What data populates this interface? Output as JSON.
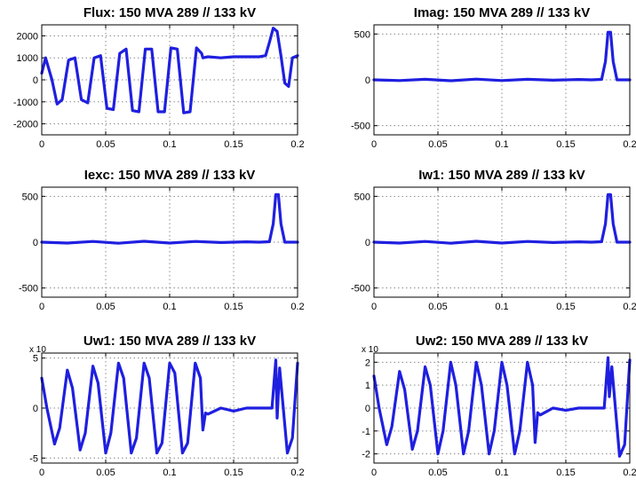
{
  "chart_data": [
    {
      "type": "line",
      "title": "Flux: 150 MVA 289 // 133 kV",
      "x_ticks": [
        "0",
        "0.05",
        "0.1",
        "0.15",
        "0.2"
      ],
      "y_ticks": [
        "-2000",
        "-1000",
        "0",
        "1000",
        "2000"
      ],
      "xlim": [
        0,
        0.2
      ],
      "ylim": [
        -2500,
        2500
      ],
      "grid": true,
      "color": "#1f1fe0",
      "series": [
        {
          "x": [
            0,
            0.003,
            0.008,
            0.012,
            0.016,
            0.021,
            0.026,
            0.031,
            0.036,
            0.041,
            0.046,
            0.051,
            0.056,
            0.061,
            0.066,
            0.071,
            0.076,
            0.081,
            0.086,
            0.091,
            0.096,
            0.101,
            0.106,
            0.111,
            0.116,
            0.121,
            0.125,
            0.126,
            0.13,
            0.14,
            0.15,
            0.16,
            0.17,
            0.175,
            0.178,
            0.181,
            0.184,
            0.187,
            0.19,
            0.193,
            0.196,
            0.2
          ],
          "y": [
            300,
            1000,
            0,
            -1100,
            -900,
            900,
            1000,
            -900,
            -1050,
            1000,
            1100,
            -1300,
            -1350,
            1200,
            1400,
            -1400,
            -1450,
            1400,
            1400,
            -1450,
            -1450,
            1450,
            1400,
            -1500,
            -1450,
            1450,
            1200,
            1000,
            1050,
            1000,
            1050,
            1050,
            1050,
            1100,
            1700,
            2350,
            2200,
            1100,
            -150,
            -300,
            1000,
            1100
          ]
        }
      ]
    },
    {
      "type": "line",
      "title": "Imag: 150 MVA 289 // 133 kV",
      "x_ticks": [
        "0",
        "0.05",
        "0.1",
        "0.15",
        "0.2"
      ],
      "y_ticks": [
        "-500",
        "0",
        "500"
      ],
      "xlim": [
        0,
        0.2
      ],
      "ylim": [
        -600,
        600
      ],
      "grid": true,
      "color": "#1f1fe0",
      "series": [
        {
          "x": [
            0,
            0.02,
            0.04,
            0.06,
            0.08,
            0.1,
            0.12,
            0.14,
            0.16,
            0.17,
            0.178,
            0.181,
            0.183,
            0.185,
            0.187,
            0.19,
            0.2
          ],
          "y": [
            0,
            -8,
            6,
            -10,
            8,
            -8,
            6,
            -4,
            4,
            0,
            5,
            200,
            520,
            520,
            200,
            0,
            0
          ]
        }
      ]
    },
    {
      "type": "line",
      "title": "Iexc: 150 MVA 289 // 133 kV",
      "x_ticks": [
        "0",
        "0.05",
        "0.1",
        "0.15",
        "0.2"
      ],
      "y_ticks": [
        "-500",
        "0",
        "500"
      ],
      "xlim": [
        0,
        0.2
      ],
      "ylim": [
        -600,
        600
      ],
      "grid": true,
      "color": "#1f1fe0",
      "series": [
        {
          "x": [
            0,
            0.02,
            0.04,
            0.06,
            0.08,
            0.1,
            0.12,
            0.14,
            0.16,
            0.17,
            0.178,
            0.181,
            0.183,
            0.185,
            0.187,
            0.19,
            0.2
          ],
          "y": [
            0,
            -10,
            8,
            -12,
            10,
            -10,
            8,
            -4,
            4,
            0,
            5,
            200,
            520,
            520,
            200,
            0,
            0
          ]
        }
      ]
    },
    {
      "type": "line",
      "title": "Iw1: 150 MVA 289 // 133 kV",
      "x_ticks": [
        "0",
        "0.05",
        "0.1",
        "0.15",
        "0.2"
      ],
      "y_ticks": [
        "-500",
        "0",
        "500"
      ],
      "xlim": [
        0,
        0.2
      ],
      "ylim": [
        -600,
        600
      ],
      "grid": true,
      "color": "#1f1fe0",
      "series": [
        {
          "x": [
            0,
            0.02,
            0.04,
            0.06,
            0.08,
            0.1,
            0.12,
            0.14,
            0.16,
            0.17,
            0.178,
            0.181,
            0.183,
            0.185,
            0.187,
            0.19,
            0.2
          ],
          "y": [
            0,
            -10,
            8,
            -12,
            10,
            -10,
            8,
            -4,
            4,
            0,
            5,
            200,
            520,
            520,
            200,
            0,
            0
          ]
        }
      ]
    },
    {
      "type": "line",
      "title": "Uw1: 150 MVA 289 // 133 kV",
      "multiplier": "x 10",
      "x_ticks": [
        "0",
        "0.05",
        "0.1",
        "0.15",
        "0.2"
      ],
      "y_ticks": [
        "-5",
        "0",
        "5"
      ],
      "xlim": [
        0,
        0.2
      ],
      "ylim": [
        -5.5,
        5.5
      ],
      "grid": true,
      "color": "#1f1fe0",
      "series": [
        {
          "x": [
            0,
            0.004,
            0.01,
            0.014,
            0.02,
            0.024,
            0.03,
            0.034,
            0.04,
            0.044,
            0.05,
            0.054,
            0.06,
            0.064,
            0.07,
            0.074,
            0.08,
            0.084,
            0.09,
            0.094,
            0.1,
            0.104,
            0.11,
            0.114,
            0.12,
            0.124,
            0.126,
            0.128,
            0.13,
            0.14,
            0.15,
            0.16,
            0.17,
            0.18,
            0.183,
            0.184,
            0.186,
            0.192,
            0.196,
            0.2
          ],
          "y": [
            3,
            0,
            -3.6,
            -2,
            3.8,
            2,
            -4.2,
            -2.5,
            4.2,
            2.5,
            -4.5,
            -2.5,
            4.5,
            3,
            -4.5,
            -3,
            4.5,
            3,
            -4.5,
            -3.5,
            4.5,
            3.5,
            -4.5,
            -3.5,
            4.5,
            3,
            -2.2,
            -0.5,
            -0.6,
            0,
            -0.3,
            0,
            0,
            0,
            4.8,
            -1,
            4,
            -4.5,
            -3,
            4.5
          ]
        }
      ]
    },
    {
      "type": "line",
      "title": "Uw2: 150 MVA 289 // 133 kV",
      "multiplier": "x 10",
      "x_ticks": [
        "0",
        "0.05",
        "0.1",
        "0.15",
        "0.2"
      ],
      "y_ticks": [
        "-2",
        "-1",
        "0",
        "1",
        "2"
      ],
      "xlim": [
        0,
        0.2
      ],
      "ylim": [
        -2.4,
        2.4
      ],
      "grid": true,
      "color": "#1f1fe0",
      "series": [
        {
          "x": [
            0,
            0.004,
            0.01,
            0.014,
            0.02,
            0.024,
            0.03,
            0.034,
            0.04,
            0.044,
            0.05,
            0.054,
            0.06,
            0.064,
            0.07,
            0.074,
            0.08,
            0.084,
            0.09,
            0.094,
            0.1,
            0.104,
            0.11,
            0.114,
            0.12,
            0.124,
            0.126,
            0.128,
            0.13,
            0.14,
            0.15,
            0.16,
            0.17,
            0.18,
            0.183,
            0.184,
            0.186,
            0.192,
            0.196,
            0.2
          ],
          "y": [
            1.4,
            0,
            -1.6,
            -0.8,
            1.6,
            0.8,
            -1.8,
            -1,
            1.8,
            1,
            -2,
            -1,
            2,
            1,
            -2,
            -1,
            2,
            1,
            -2,
            -1,
            2,
            1,
            -2,
            -1,
            2,
            1,
            -1.5,
            -0.2,
            -0.3,
            0,
            -0.1,
            0,
            0,
            0,
            2.2,
            0.5,
            1.8,
            -2.1,
            -1.6,
            2.1
          ]
        }
      ]
    }
  ]
}
